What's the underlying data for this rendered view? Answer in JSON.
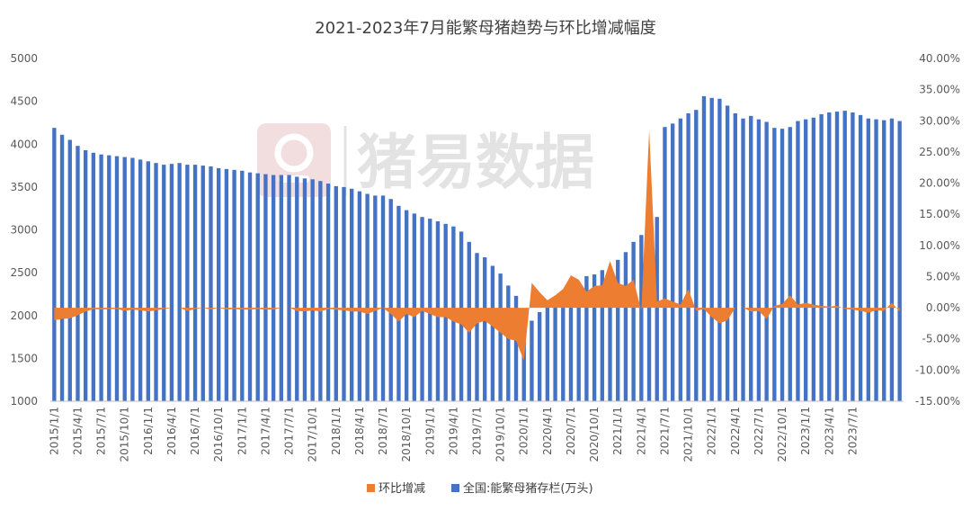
{
  "chart_data": {
    "type": "bar",
    "title": "2021-2023年7月能繁母猪趋势与环比增减幅度",
    "watermark": "猪易数据",
    "legend_position": "bottom",
    "left_axis": {
      "min": 1000,
      "max": 5000,
      "step": 500,
      "ticks": [
        "1000",
        "1500",
        "2000",
        "2500",
        "3000",
        "3500",
        "4000",
        "4500",
        "5000"
      ]
    },
    "right_axis": {
      "min": -15,
      "max": 40,
      "step": 5,
      "ticks": [
        "-15.00%",
        "-10.00%",
        "-5.00%",
        "0.00%",
        "5.00%",
        "10.00%",
        "15.00%",
        "20.00%",
        "25.00%",
        "30.00%",
        "35.00%",
        "40.00%"
      ]
    },
    "x_labels": [
      "2015/1/1",
      "2015/4/1",
      "2015/7/1",
      "2015/10/1",
      "2016/1/1",
      "2016/4/1",
      "2016/7/1",
      "2016/10/1",
      "2017/1/1",
      "2017/4/1",
      "2017/7/1",
      "2017/10/1",
      "2018/1/1",
      "2018/4/1",
      "2018/7/1",
      "2018/10/1",
      "2019/1/1",
      "2019/4/1",
      "2019/7/1",
      "2019/10/1",
      "2020/1/1",
      "2020/4/1",
      "2020/7/1",
      "2020/10/1",
      "2021/1/1",
      "2021/4/1",
      "2021/7/1",
      "2021/10/1",
      "2022/1/1",
      "2022/4/1",
      "2022/7/1",
      "2022/10/1",
      "2023/1/1",
      "2023/4/1",
      "2023/7/1"
    ],
    "series": [
      {
        "name": "全国:能繁母猪存栏(万头)",
        "type": "bar",
        "axis": "left",
        "color": "#4472c4",
        "values": [
          4190,
          4110,
          4050,
          3980,
          3930,
          3900,
          3880,
          3870,
          3860,
          3850,
          3840,
          3820,
          3800,
          3780,
          3760,
          3770,
          3780,
          3760,
          3760,
          3750,
          3740,
          3720,
          3710,
          3700,
          3690,
          3670,
          3660,
          3650,
          3640,
          3640,
          3640,
          3620,
          3600,
          3590,
          3570,
          3540,
          3510,
          3500,
          3480,
          3450,
          3420,
          3400,
          3400,
          3360,
          3280,
          3230,
          3190,
          3150,
          3130,
          3100,
          3070,
          3040,
          2980,
          2860,
          2730,
          2680,
          2580,
          2490,
          2350,
          2230,
          2030,
          1940,
          2040,
          2100,
          2120,
          2160,
          2220,
          2330,
          2460,
          2480,
          2530,
          2560,
          2650,
          2740,
          2860,
          2940,
          3040,
          3150,
          4200,
          4240,
          4300,
          4360,
          4400,
          4560,
          4540,
          4530,
          4450,
          4360,
          4300,
          4330,
          4290,
          4260,
          4190,
          4180,
          4200,
          4270,
          4290,
          4310,
          4350,
          4370,
          4380,
          4390,
          4370,
          4340,
          4300,
          4290,
          4280,
          4300,
          4270
        ]
      },
      {
        "name": "环比增减",
        "type": "area",
        "axis": "right",
        "color": "#ed7d31",
        "values": [
          -2.0,
          -1.8,
          -1.7,
          -1.2,
          -0.6,
          -0.2,
          -0.3,
          -0.2,
          -0.2,
          -0.5,
          -0.3,
          -0.4,
          -0.6,
          -0.4,
          -0.2,
          0.0,
          0.0,
          -0.5,
          -0.2,
          0.0,
          -0.3,
          0.0,
          -0.3,
          -0.2,
          -0.3,
          -0.3,
          -0.2,
          -0.3,
          -0.3,
          0.0,
          0.0,
          -0.5,
          -0.6,
          -0.4,
          -0.6,
          -0.2,
          -0.3,
          -0.4,
          -0.6,
          -0.6,
          -1.0,
          -0.5,
          0.0,
          -1.0,
          -2.2,
          -1.0,
          -1.5,
          -0.5,
          -1.0,
          -1.5,
          -1.5,
          -2.2,
          -2.7,
          -4.0,
          -2.5,
          -2.1,
          -3.0,
          -4.0,
          -5.0,
          -5.3,
          -8.5,
          4.0,
          2.5,
          1.2,
          2.0,
          3.0,
          5.2,
          4.5,
          2.6,
          3.5,
          3.6,
          7.5,
          4.0,
          3.5,
          4.5,
          -0.5,
          28.5,
          1.0,
          1.5,
          1.0,
          0.5,
          3.0,
          -0.5,
          -0.2,
          -1.5,
          -2.5,
          -2.0,
          0.0,
          0.0,
          -0.6,
          -0.5,
          -1.8,
          0.3,
          0.6,
          2.0,
          0.5,
          0.8,
          0.5,
          0.3,
          0.2,
          0.3,
          -0.2,
          -0.3,
          -0.5,
          -0.8,
          -0.4,
          -0.5,
          0.8,
          -0.6
        ]
      }
    ]
  },
  "legend": {
    "items": [
      {
        "label": "环比增减",
        "color": "#ed7d31"
      },
      {
        "label": "全国:能繁母猪存栏(万头)",
        "color": "#4472c4"
      }
    ]
  }
}
